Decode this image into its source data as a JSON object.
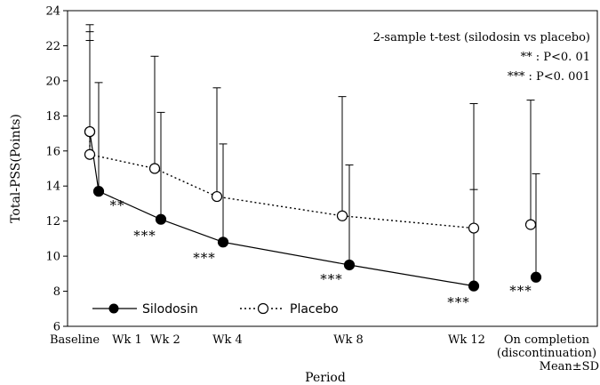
{
  "chart_data": {
    "type": "line",
    "title": "",
    "xlabel": "Period",
    "ylabel": "Total-PSS(Points)",
    "ylim": [
      6,
      24
    ],
    "yticks": [
      6,
      8,
      10,
      12,
      14,
      16,
      18,
      20,
      22,
      24
    ],
    "categories": [
      "Baseline",
      "Wk 1",
      "Wk 2",
      "Wk 4",
      "Wk 8",
      "Wk 12",
      "On completion"
    ],
    "category_label_lines": [
      [
        "Baseline"
      ],
      [
        "Wk 1"
      ],
      [
        "Wk 2"
      ],
      [
        "Wk 4"
      ],
      [
        "Wk 8"
      ],
      [
        "Wk 12"
      ],
      [
        "On completion",
        "(discontinuation)"
      ]
    ],
    "corner_note": "Mean±SD",
    "grid": false,
    "legend_position": "bottom-left",
    "series": [
      {
        "name": "Silodosin",
        "marker": "filled-circle",
        "line": "solid",
        "values": [
          17.1,
          13.7,
          12.1,
          10.8,
          9.5,
          8.3,
          8.8
        ],
        "sd_upper": [
          22.8,
          19.9,
          18.2,
          16.4,
          15.2,
          13.8,
          14.7
        ],
        "significance": [
          "",
          "**",
          "***",
          "***",
          "***",
          "***",
          "***"
        ]
      },
      {
        "name": "Placebo",
        "marker": "open-circle",
        "line": "dotted",
        "values": [
          17.1,
          15.8,
          15.0,
          13.4,
          12.3,
          11.6,
          11.8
        ],
        "sd_upper": [
          23.2,
          22.3,
          21.4,
          19.6,
          19.1,
          18.7,
          18.9
        ]
      }
    ],
    "annotations": [
      "2-sample t-test (silodosin vs placebo)",
      "** : P<0. 01",
      "*** : P<0. 001"
    ]
  }
}
